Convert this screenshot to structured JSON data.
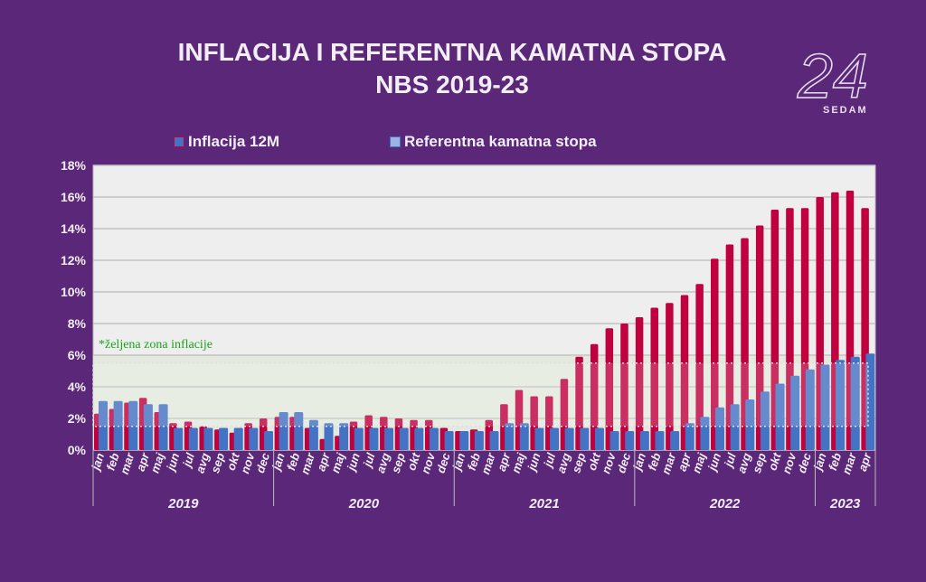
{
  "title_line1": "INFLACIJA I REFERENTNA KAMATNA STOPA",
  "title_line2": "NBS 2019-23",
  "logo": {
    "text": "24",
    "subtext": "SEDAM"
  },
  "colors": {
    "background": "#5b2779",
    "inflation": "#c0003f",
    "key_rate": "#4472c4",
    "plot_bg": "#eeeeee",
    "zone": "#e3e9df",
    "annotation": "#1aa31a"
  },
  "chart_data": {
    "type": "bar",
    "title": "INFLACIJA I REFERENTNA KAMATNA STOPA NBS 2019-23",
    "legend_position": "top",
    "grid": true,
    "ylim": [
      0,
      18
    ],
    "yticks": [
      "0%",
      "2%",
      "4%",
      "6%",
      "8%",
      "10%",
      "12%",
      "14%",
      "16%",
      "18%"
    ],
    "annotation": "*željena zona inflacije",
    "target_zone": [
      1.5,
      5.5
    ],
    "years": [
      {
        "label": "2019",
        "months": 12
      },
      {
        "label": "2020",
        "months": 12
      },
      {
        "label": "2021",
        "months": 12
      },
      {
        "label": "2022",
        "months": 12
      },
      {
        "label": "2023",
        "months": 4
      }
    ],
    "categories": [
      "jan",
      "feb",
      "mar",
      "apr",
      "maj",
      "jun",
      "jul",
      "avg",
      "sep",
      "okt",
      "nov",
      "dec",
      "jan",
      "feb",
      "mar",
      "apr",
      "maj",
      "jun",
      "jul",
      "avg",
      "sep",
      "okt",
      "nov",
      "dec",
      "jan",
      "feb",
      "mar",
      "apr",
      "maj",
      "jun",
      "jul",
      "avg",
      "sep",
      "okt",
      "nov",
      "dec",
      "jan",
      "feb",
      "mar",
      "apr",
      "maj",
      "jun",
      "jul",
      "avg",
      "sep",
      "okt",
      "nov",
      "dec",
      "jan",
      "feb",
      "mar",
      "apr"
    ],
    "series": [
      {
        "name": "Inflacija 12M",
        "values": [
          2.3,
          2.6,
          3.0,
          3.3,
          2.4,
          1.7,
          1.8,
          1.5,
          1.3,
          1.1,
          1.7,
          2.0,
          2.1,
          2.1,
          1.4,
          0.7,
          0.9,
          1.8,
          2.2,
          2.1,
          2.0,
          1.9,
          1.9,
          1.4,
          1.2,
          1.3,
          1.9,
          2.9,
          3.8,
          3.4,
          3.4,
          4.5,
          5.9,
          6.7,
          7.7,
          8.0,
          8.4,
          9.0,
          9.3,
          9.8,
          10.5,
          12.1,
          13.0,
          13.4,
          14.2,
          15.2,
          15.3,
          15.3,
          16.0,
          16.3,
          16.4,
          15.3
        ]
      },
      {
        "name": "Referentna kamatna stopa",
        "values": [
          3.1,
          3.1,
          3.1,
          2.9,
          2.9,
          1.4,
          1.4,
          1.4,
          1.4,
          1.4,
          1.4,
          1.2,
          2.4,
          2.4,
          1.9,
          1.7,
          1.7,
          1.4,
          1.4,
          1.4,
          1.4,
          1.4,
          1.4,
          1.2,
          1.2,
          1.2,
          1.2,
          1.7,
          1.7,
          1.4,
          1.4,
          1.4,
          1.4,
          1.4,
          1.2,
          1.2,
          1.2,
          1.2,
          1.2,
          1.7,
          2.1,
          2.7,
          2.9,
          3.2,
          3.7,
          4.2,
          4.7,
          5.1,
          5.4,
          5.7,
          5.9,
          6.1
        ]
      }
    ]
  }
}
